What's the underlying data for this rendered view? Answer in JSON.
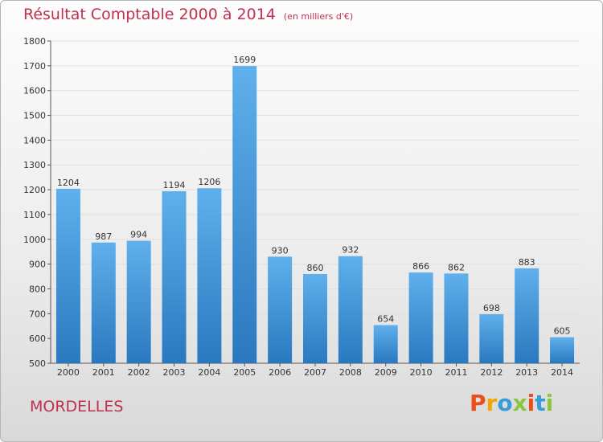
{
  "title": "Résultat Comptable 2000 à 2014",
  "unit_label": "(en milliers d'€)",
  "city": "MORDELLES",
  "logo": {
    "letters": [
      "P",
      "r",
      "o",
      "x",
      "i",
      "t",
      "i"
    ],
    "colors": [
      "#e94e1b",
      "#f2a500",
      "#3a9bd9",
      "#8cc63f",
      "#e94e1b",
      "#3a9bd9",
      "#8cc63f"
    ]
  },
  "colors": {
    "bar": "#3f94d6",
    "title": "#c0304f",
    "grid": "#e0e0e0"
  },
  "chart_data": {
    "type": "bar",
    "categories": [
      "2000",
      "2001",
      "2002",
      "2003",
      "2004",
      "2005",
      "2006",
      "2007",
      "2008",
      "2009",
      "2010",
      "2011",
      "2012",
      "2013",
      "2014"
    ],
    "values": [
      1204,
      987,
      994,
      1194,
      1206,
      1699,
      930,
      860,
      932,
      654,
      866,
      862,
      698,
      883,
      605
    ],
    "ylim": [
      500,
      1800
    ],
    "yticks": [
      500,
      600,
      700,
      800,
      900,
      1000,
      1100,
      1200,
      1300,
      1400,
      1500,
      1600,
      1700,
      1800
    ],
    "grid": true
  }
}
